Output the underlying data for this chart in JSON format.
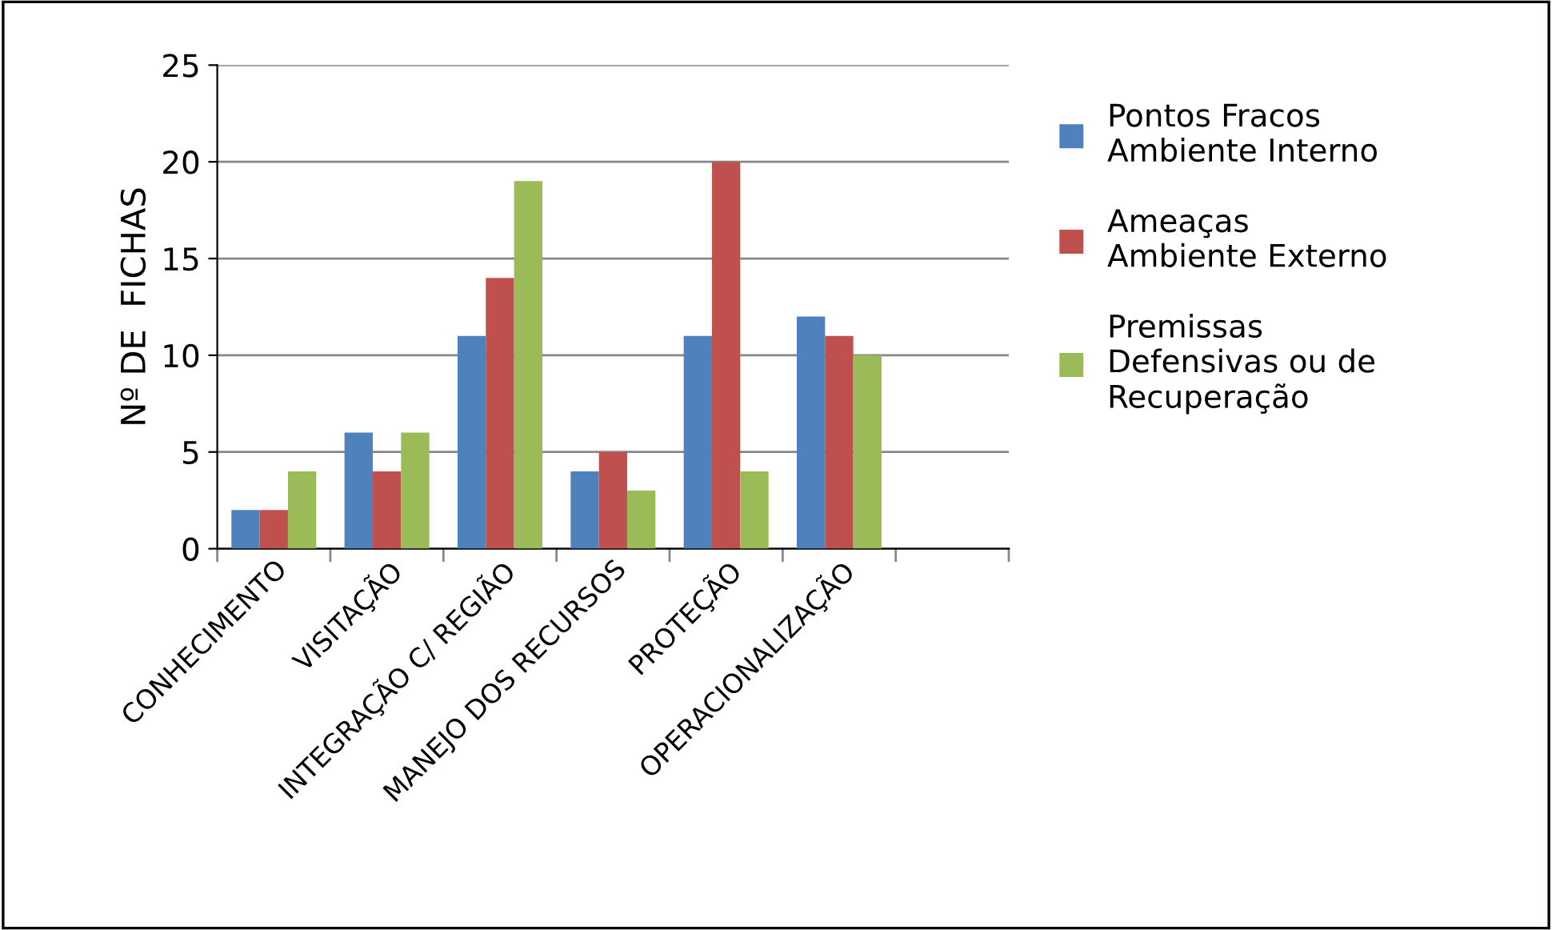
{
  "chart_data": {
    "type": "bar",
    "categories": [
      "CONHECIMENTO",
      "VISITAÇÃO",
      "INTEGRAÇÃO C/ REGIÃO",
      "MANEJO DOS RECURSOS",
      "PROTEÇÃO",
      "OPERACIONALIZAÇÃO",
      null
    ],
    "ylabel": "Nº DE  FICHAS",
    "series": [
      {
        "name": "Pontos Fracos\nAmbiente Interno",
        "color": "#4f81bd",
        "values": [
          2,
          6,
          11,
          4,
          11,
          12,
          null
        ]
      },
      {
        "name": "Ameaças\nAmbiente Externo",
        "color": "#c0504d",
        "values": [
          2,
          4,
          14,
          5,
          20,
          11,
          null
        ]
      },
      {
        "name": "Premissas\nDefensivas ou de\nRecuperação",
        "color": "#9bbb59",
        "values": [
          4,
          6,
          19,
          3,
          4,
          10,
          null
        ]
      }
    ],
    "ylim": [
      0,
      25
    ],
    "yticks": [
      0,
      5,
      10,
      15,
      20,
      25
    ],
    "grid": "y",
    "legend": "right"
  }
}
